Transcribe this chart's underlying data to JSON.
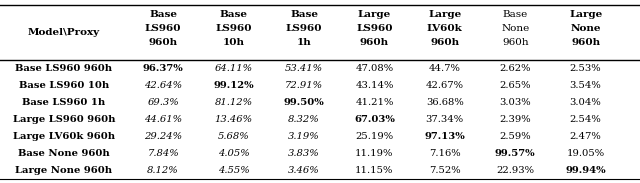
{
  "col_headers_line1": [
    "Base",
    "Base",
    "Base",
    "Large",
    "Large",
    "Base",
    "Large"
  ],
  "col_headers_line2": [
    "LS960",
    "LS960",
    "LS960",
    "LS960",
    "LV60k",
    "None",
    "None"
  ],
  "col_headers_line3": [
    "960h",
    "10h",
    "1h",
    "960h",
    "960h",
    "960h",
    "960h"
  ],
  "col_header_bold": [
    true,
    true,
    true,
    true,
    true,
    false,
    true
  ],
  "row_headers": [
    "Model\\Proxy",
    "Base LS960 960h",
    "Base LS960 10h",
    "Base LS960 1h",
    "Large LS960 960h",
    "Large LV60k 960h",
    "Base None 960h",
    "Large None 960h"
  ],
  "table_data": [
    [
      "96.37%",
      "64.11%",
      "53.41%",
      "47.08%",
      "44.7%",
      "2.62%",
      "2.53%"
    ],
    [
      "42.64%",
      "99.12%",
      "72.91%",
      "43.14%",
      "42.67%",
      "2.65%",
      "3.54%"
    ],
    [
      "69.3%",
      "81.12%",
      "99.50%",
      "41.21%",
      "36.68%",
      "3.03%",
      "3.04%"
    ],
    [
      "44.61%",
      "13.46%",
      "8.32%",
      "67.03%",
      "37.34%",
      "2.39%",
      "2.54%"
    ],
    [
      "29.24%",
      "5.68%",
      "3.19%",
      "25.19%",
      "97.13%",
      "2.59%",
      "2.47%"
    ],
    [
      "7.84%",
      "4.05%",
      "3.83%",
      "11.19%",
      "7.16%",
      "99.57%",
      "19.05%"
    ],
    [
      "8.12%",
      "4.55%",
      "3.46%",
      "11.15%",
      "7.52%",
      "22.93%",
      "99.94%"
    ]
  ],
  "diagonal_bold": [
    [
      true,
      false,
      false,
      false,
      false,
      false,
      false
    ],
    [
      false,
      true,
      false,
      false,
      false,
      false,
      false
    ],
    [
      false,
      false,
      true,
      false,
      false,
      false,
      false
    ],
    [
      false,
      false,
      false,
      true,
      false,
      false,
      false
    ],
    [
      false,
      false,
      false,
      false,
      true,
      false,
      false
    ],
    [
      false,
      false,
      false,
      false,
      false,
      true,
      false
    ],
    [
      false,
      false,
      false,
      false,
      false,
      false,
      true
    ]
  ],
  "italic_cols": [
    0,
    1,
    2
  ],
  "figure_width": 6.4,
  "figure_height": 1.83,
  "dpi": 100,
  "font_size": 7.2,
  "bg_color": "#ffffff",
  "text_color": "#000000",
  "line_color": "#000000"
}
